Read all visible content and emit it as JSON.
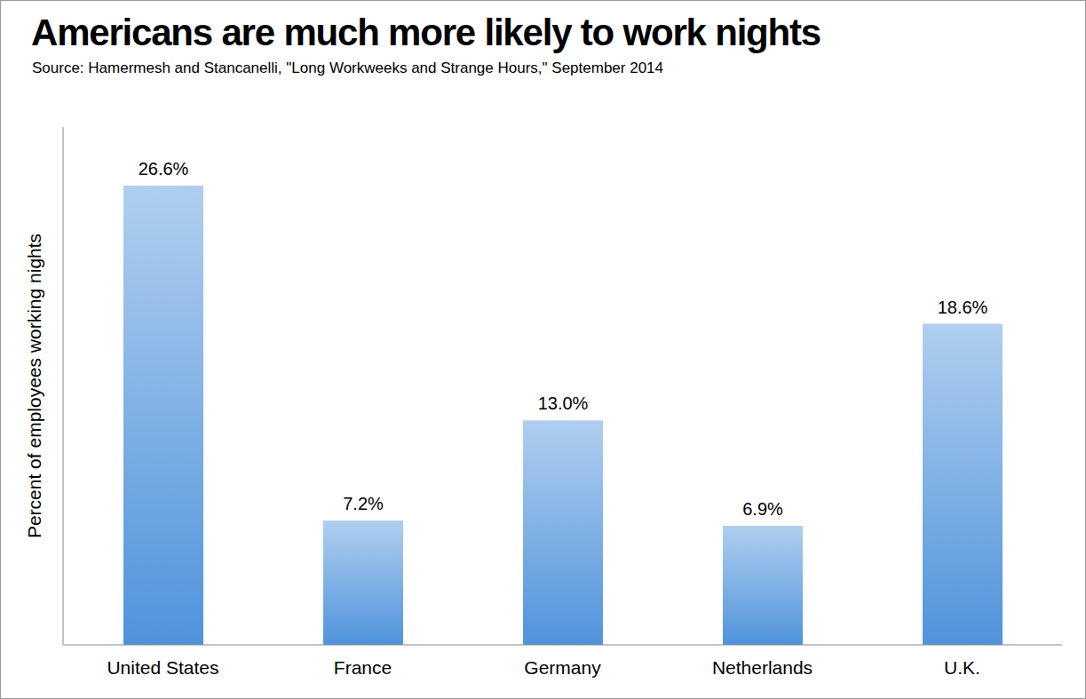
{
  "chart_data": {
    "type": "bar",
    "title": "Americans are much more likely to work nights",
    "subtitle": "Source: Hamermesh and Stancanelli, \"Long Workweeks and Strange Hours,\" September 2014",
    "ylabel": "Percent of employees working nights",
    "categories": [
      "United States",
      "France",
      "Germany",
      "Netherlands",
      "U.K."
    ],
    "values": [
      26.6,
      7.2,
      13.0,
      6.9,
      18.6
    ],
    "value_labels": [
      "26.6%",
      "7.2%",
      "13.0%",
      "6.9%",
      "18.6%"
    ],
    "color": "#4f93db",
    "ylim": [
      0,
      30
    ],
    "grid": false,
    "data_labels": true,
    "tick_labels": "x"
  }
}
